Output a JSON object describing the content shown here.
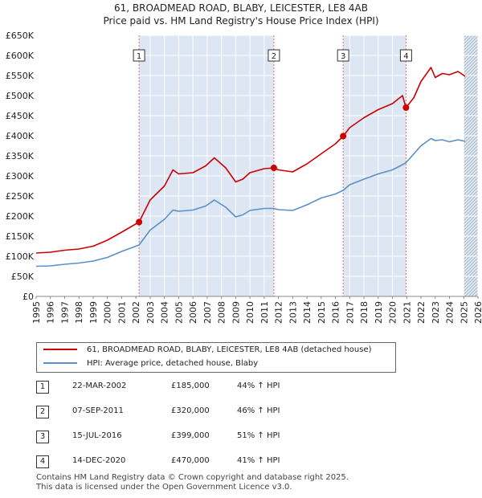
{
  "title": "61, BROADMEAD ROAD, BLABY, LEICESTER, LE8 4AB",
  "subtitle": "Price paid vs. HM Land Registry's House Price Index (HPI)",
  "colors": {
    "property": "#cc0000",
    "hpi": "#5b8fc9",
    "band": "#dde6f3",
    "marker_line": "#e07070"
  },
  "chart_data": {
    "type": "line",
    "title": "61, BROADMEAD ROAD, BLABY, LEICESTER, LE8 4AB",
    "subtitle": "Price paid vs. HM Land Registry's House Price Index (HPI)",
    "xlabel": "",
    "ylabel": "",
    "xlim": [
      1995,
      2026
    ],
    "ylim": [
      0,
      650000
    ],
    "grid": true,
    "yticks": [
      {
        "value": 0,
        "label": "£0"
      },
      {
        "value": 50000,
        "label": "£50K"
      },
      {
        "value": 100000,
        "label": "£100K"
      },
      {
        "value": 150000,
        "label": "£150K"
      },
      {
        "value": 200000,
        "label": "£200K"
      },
      {
        "value": 250000,
        "label": "£250K"
      },
      {
        "value": 300000,
        "label": "£300K"
      },
      {
        "value": 350000,
        "label": "£350K"
      },
      {
        "value": 400000,
        "label": "£400K"
      },
      {
        "value": 450000,
        "label": "£450K"
      },
      {
        "value": 500000,
        "label": "£500K"
      },
      {
        "value": 550000,
        "label": "£550K"
      },
      {
        "value": 600000,
        "label": "£600K"
      },
      {
        "value": 650000,
        "label": "£650K"
      }
    ],
    "xticks": [
      "1995",
      "1996",
      "1997",
      "1998",
      "1999",
      "2000",
      "2001",
      "2002",
      "2003",
      "2004",
      "2005",
      "2006",
      "2007",
      "2008",
      "2009",
      "2010",
      "2011",
      "2012",
      "2013",
      "2014",
      "2015",
      "2016",
      "2017",
      "2018",
      "2019",
      "2020",
      "2021",
      "2022",
      "2023",
      "2024",
      "2025",
      "2026"
    ],
    "shaded_ranges": [
      [
        2002.22,
        2011.68
      ],
      [
        2016.54,
        2020.95
      ],
      [
        2025.0,
        2026.0
      ]
    ],
    "hatched_range": [
      2025.0,
      2026.0
    ],
    "series": [
      {
        "name": "61, BROADMEAD ROAD, BLABY, LEICESTER, LE8 4AB (detached house)",
        "x": [
          1995,
          1996,
          1997,
          1998,
          1999,
          2000,
          2001,
          2002.22,
          2003,
          2004,
          2004.6,
          2005,
          2006,
          2006.9,
          2007.5,
          2008.3,
          2009,
          2009.5,
          2010,
          2011,
          2011.68,
          2012,
          2013,
          2014,
          2015,
          2016,
          2016.54,
          2017,
          2018,
          2019,
          2020,
          2020.7,
          2020.95,
          2021.5,
          2022,
          2022.7,
          2023,
          2023.5,
          2024,
          2024.6,
          2025.1
        ],
        "values": [
          108000,
          110000,
          115000,
          118000,
          125000,
          140000,
          160000,
          185000,
          240000,
          275000,
          315000,
          305000,
          308000,
          325000,
          345000,
          320000,
          285000,
          292000,
          308000,
          318000,
          320000,
          315000,
          310000,
          330000,
          355000,
          380000,
          399000,
          420000,
          445000,
          465000,
          480000,
          500000,
          470000,
          495000,
          535000,
          570000,
          545000,
          555000,
          552000,
          560000,
          548000
        ]
      },
      {
        "name": "HPI: Average price, detached house, Blaby",
        "x": [
          1995,
          1996,
          1997,
          1998,
          1999,
          2000,
          2001,
          2002.22,
          2003,
          2004,
          2004.6,
          2005,
          2006,
          2006.9,
          2007.5,
          2008.3,
          2009,
          2009.5,
          2010,
          2011,
          2011.68,
          2012,
          2013,
          2014,
          2015,
          2016,
          2016.54,
          2017,
          2018,
          2019,
          2020,
          2020.7,
          2020.95,
          2021.5,
          2022,
          2022.7,
          2023,
          2023.5,
          2024,
          2024.6,
          2025.1
        ],
        "values": [
          75000,
          76000,
          80000,
          83000,
          88000,
          97000,
          112000,
          128000,
          165000,
          192000,
          215000,
          212000,
          215000,
          225000,
          240000,
          222000,
          198000,
          203000,
          214000,
          219000,
          219000,
          216000,
          214000,
          228000,
          245000,
          255000,
          264000,
          278000,
          292000,
          305000,
          315000,
          328000,
          333000,
          355000,
          375000,
          393000,
          388000,
          390000,
          385000,
          390000,
          386000
        ]
      }
    ],
    "markers": [
      {
        "label": "1",
        "x": 2002.22,
        "value": 185000
      },
      {
        "label": "2",
        "x": 2011.68,
        "value": 320000
      },
      {
        "label": "3",
        "x": 2016.54,
        "value": 399000
      },
      {
        "label": "4",
        "x": 2020.95,
        "value": 470000
      }
    ]
  },
  "legend": {
    "property_label": "61, BROADMEAD ROAD, BLABY, LEICESTER, LE8 4AB (detached house)",
    "hpi_label": "HPI: Average price, detached house, Blaby"
  },
  "sales": [
    {
      "num": "1",
      "date": "22-MAR-2002",
      "price": "£185,000",
      "hpi": "44% ↑ HPI"
    },
    {
      "num": "2",
      "date": "07-SEP-2011",
      "price": "£320,000",
      "hpi": "46% ↑ HPI"
    },
    {
      "num": "3",
      "date": "15-JUL-2016",
      "price": "£399,000",
      "hpi": "51% ↑ HPI"
    },
    {
      "num": "4",
      "date": "14-DEC-2020",
      "price": "£470,000",
      "hpi": "41% ↑ HPI"
    }
  ],
  "footer": {
    "line1": "Contains HM Land Registry data © Crown copyright and database right 2025.",
    "line2": "This data is licensed under the Open Government Licence v3.0."
  }
}
